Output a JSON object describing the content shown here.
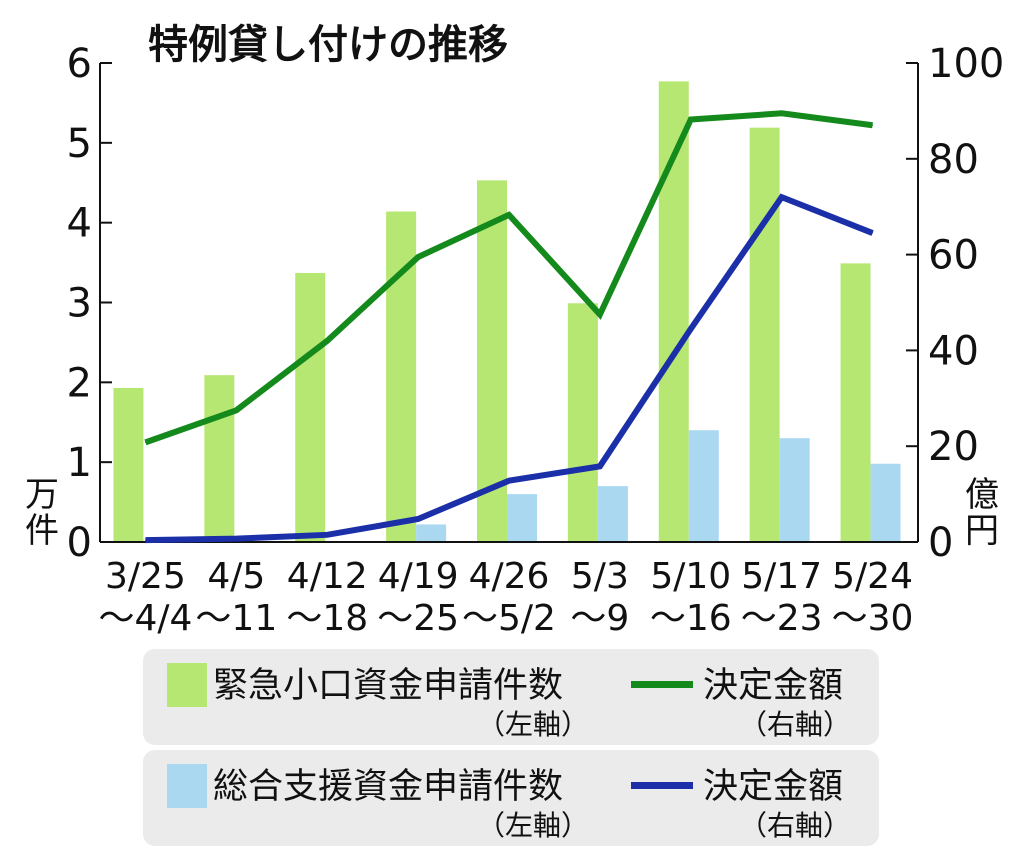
{
  "chart_data": {
    "type": "bar+line",
    "title": "特例貸し付けの推移",
    "categories": [
      [
        "3/25",
        "～4/4"
      ],
      [
        "4/5",
        "～11"
      ],
      [
        "4/12",
        "～18"
      ],
      [
        "4/19",
        "～25"
      ],
      [
        "4/26",
        "～5/2"
      ],
      [
        "5/3",
        "～9"
      ],
      [
        "5/10",
        "～16"
      ],
      [
        "5/17",
        "～23"
      ],
      [
        "5/24",
        "～30"
      ]
    ],
    "left_axis": {
      "unit_lines": [
        "万",
        "件"
      ],
      "ylim": [
        0,
        6
      ],
      "ticks": [
        "0",
        "1",
        "2",
        "3",
        "4",
        "5",
        "6"
      ]
    },
    "right_axis": {
      "unit_lines": [
        "億",
        "円"
      ],
      "ylim": [
        0,
        100
      ],
      "ticks": [
        "0",
        "20",
        "40",
        "60",
        "80",
        "100"
      ]
    },
    "series": [
      {
        "name": "緊急小口資金申請件数",
        "kind": "bar",
        "axis": "left",
        "color": "#b7e773",
        "values": [
          1.93,
          2.09,
          3.37,
          4.14,
          4.53,
          2.99,
          5.77,
          5.19,
          3.49
        ]
      },
      {
        "name": "総合支援資金申請件数",
        "kind": "bar",
        "axis": "left",
        "color": "#a9d8f0",
        "values": [
          0.0,
          0.0,
          0.0,
          0.22,
          0.6,
          0.7,
          1.4,
          1.3,
          0.98
        ]
      },
      {
        "name": "決定金額",
        "kind": "line",
        "axis": "right",
        "color": "#158a1c",
        "values": [
          20.8,
          27.5,
          42.0,
          59.5,
          68.3,
          47.5,
          88.2,
          89.5,
          87.0
        ]
      },
      {
        "name": "決定金額",
        "kind": "line",
        "axis": "right",
        "color": "#1a2fa8",
        "values": [
          0.4,
          0.7,
          1.5,
          4.8,
          12.8,
          15.8,
          44.5,
          72.0,
          64.5
        ]
      }
    ]
  },
  "legend": [
    {
      "swatch": "bar",
      "color": "#b7e773",
      "label": "緊急小口資金申請件数",
      "axis_note": "（左軸）"
    },
    {
      "swatch": "line",
      "color": "#158a1c",
      "label": "決定金額",
      "axis_note": "（右軸）"
    },
    {
      "swatch": "bar",
      "color": "#a9d8f0",
      "label": "総合支援資金申請件数",
      "axis_note": "（左軸）"
    },
    {
      "swatch": "line",
      "color": "#1a2fa8",
      "label": "決定金額",
      "axis_note": "（右軸）"
    }
  ]
}
